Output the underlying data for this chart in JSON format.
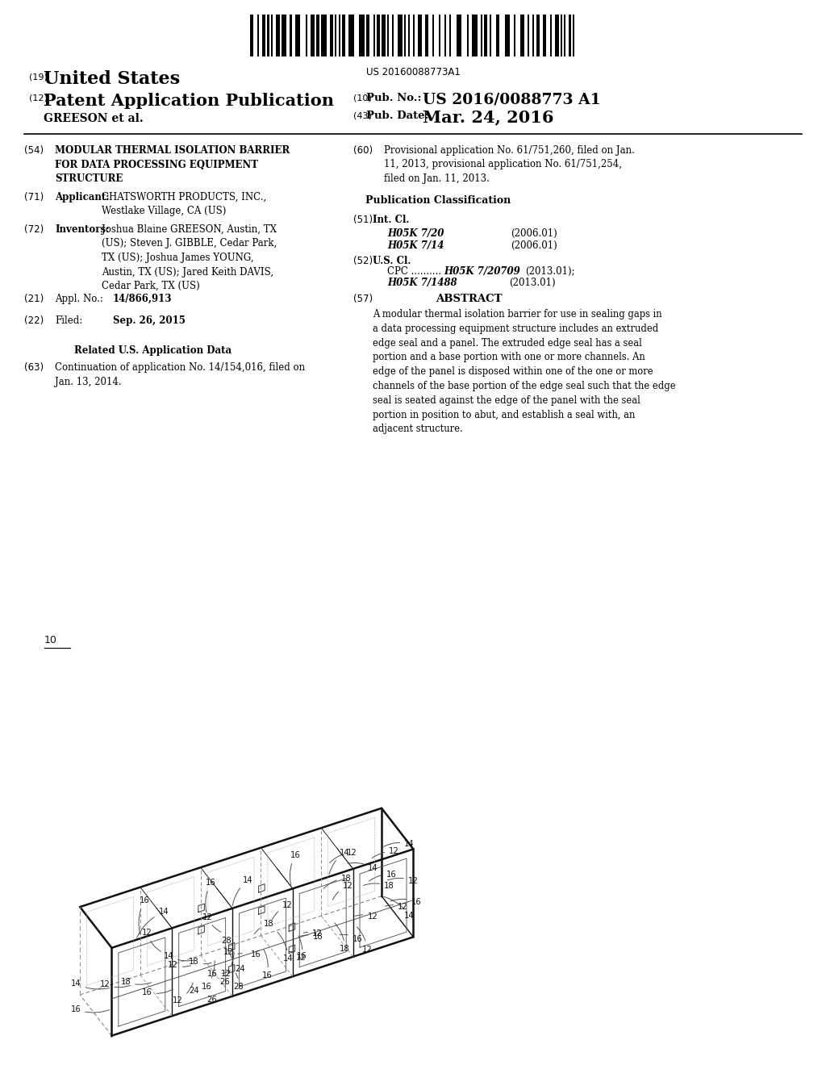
{
  "background_color": "#ffffff",
  "barcode_text": "US 20160088773A1",
  "header": {
    "number_19": "(19)",
    "united_states": "United States",
    "number_12": "(12)",
    "patent_app_pub": "Patent Application Publication",
    "number_10": "(10)",
    "pub_no_label": "Pub. No.:",
    "pub_no_value": "US 2016/0088773 A1",
    "inventor_name": "GREESON et al.",
    "number_43": "(43)",
    "pub_date_label": "Pub. Date:",
    "pub_date_value": "Mar. 24, 2016"
  },
  "left_column": {
    "item_54_num": "(54)",
    "item_54_title": "MODULAR THERMAL ISOLATION BARRIER\nFOR DATA PROCESSING EQUIPMENT\nSTRUCTURE",
    "item_71_num": "(71)",
    "item_71_label": "Applicant:",
    "item_71_value": "CHATSWORTH PRODUCTS, INC.,\nWestlake Village, CA (US)",
    "item_72_num": "(72)",
    "item_72_label": "Inventors:",
    "item_72_value": "Joshua Blaine GREESON, Austin, TX\n(US); Steven J. GIBBLE, Cedar Park,\nTX (US); Joshua James YOUNG,\nAustin, TX (US); Jared Keith DAVIS,\nCedar Park, TX (US)",
    "item_21_num": "(21)",
    "item_21_label": "Appl. No.:",
    "item_21_value": "14/866,913",
    "item_22_num": "(22)",
    "item_22_label": "Filed:",
    "item_22_value": "Sep. 26, 2015",
    "related_data_title": "Related U.S. Application Data",
    "item_63_num": "(63)",
    "item_63_value": "Continuation of application No. 14/154,016, filed on\nJan. 13, 2014."
  },
  "right_column": {
    "item_60_num": "(60)",
    "item_60_value": "Provisional application No. 61/751,260, filed on Jan.\n11, 2013, provisional application No. 61/751,254,\nfiled on Jan. 11, 2013.",
    "pub_class_title": "Publication Classification",
    "item_51_num": "(51)",
    "item_51_label": "Int. Cl.",
    "item_51_class1": "H05K 7/20",
    "item_51_date1": "(2006.01)",
    "item_51_class2": "H05K 7/14",
    "item_51_date2": "(2006.01)",
    "item_52_num": "(52)",
    "item_52_label": "U.S. Cl.",
    "item_57_num": "(57)",
    "item_57_label": "ABSTRACT",
    "item_57_value": "A modular thermal isolation barrier for use in sealing gaps in\na data processing equipment structure includes an extruded\nedge seal and a panel. The extruded edge seal has a seal\nportion and a base portion with one or more channels. An\nedge of the panel is disposed within one of the one or more\nchannels of the base portion of the edge seal such that the edge\nseal is seated against the edge of the panel with the seal\nportion in position to abut, and establish a seal with, an\nadjacent structure."
  }
}
